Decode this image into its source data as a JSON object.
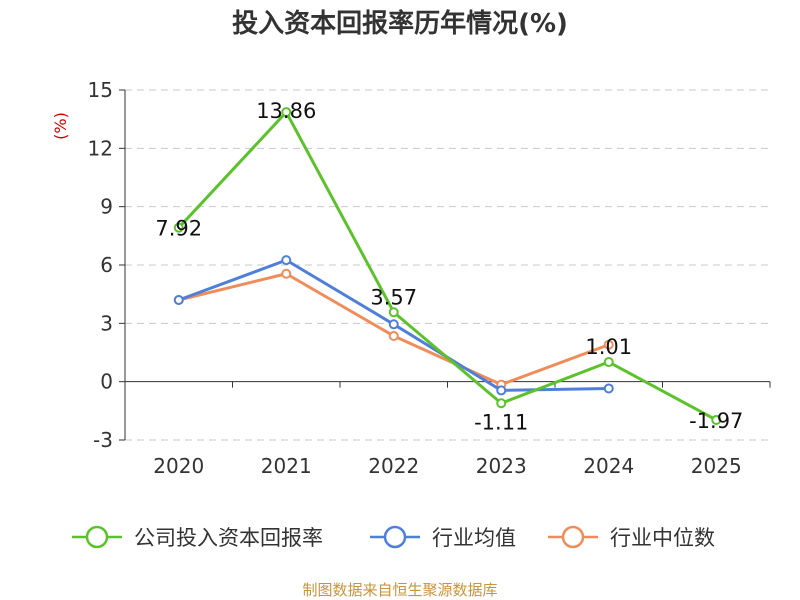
{
  "title": "投入资本回报率历年情况(%)",
  "unit_label": "(%)",
  "source": "制图数据来自恒生聚源数据库",
  "chart_data": {
    "type": "line",
    "title": "投入资本回报率历年情况(%)",
    "xlabel": "",
    "ylabel": "(%)",
    "categories": [
      "2020",
      "2021",
      "2022",
      "2023",
      "2024",
      "2025"
    ],
    "ylim": [
      -3,
      15
    ],
    "yticks": [
      15,
      12,
      9,
      6,
      3,
      0,
      -3
    ],
    "grid": true,
    "legend_position": "bottom",
    "series": [
      {
        "name": "公司投入资本回报率",
        "color": "#5cc22b",
        "values": [
          7.92,
          13.86,
          3.57,
          -1.11,
          1.01,
          -1.97
        ],
        "labels": [
          "7.92",
          "13.86",
          "3.57",
          "-1.11",
          "1.01",
          "-1.97"
        ]
      },
      {
        "name": "行业均值",
        "color": "#4f7fd8",
        "values": [
          4.2,
          6.25,
          2.95,
          -0.45,
          -0.35,
          null
        ],
        "labels": []
      },
      {
        "name": "行业中位数",
        "color": "#f08c5a",
        "values": [
          4.2,
          5.55,
          2.35,
          -0.15,
          1.9,
          null
        ],
        "labels": []
      }
    ]
  }
}
